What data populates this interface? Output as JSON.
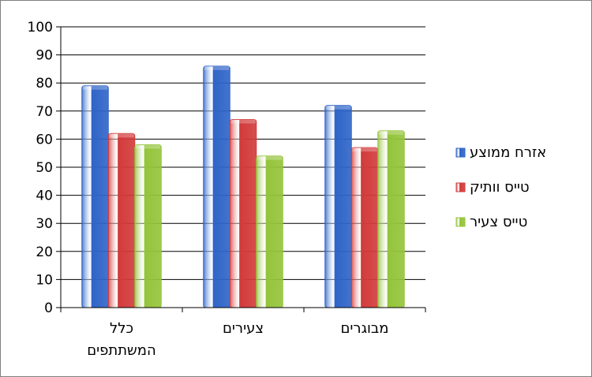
{
  "chart_data": {
    "type": "bar",
    "categories": [
      "כלל המשתתפים",
      "צעירים",
      "מבוגרים"
    ],
    "category_lines": [
      [
        "כלל",
        "המשתתפים"
      ],
      [
        "צעירים"
      ],
      [
        "מבוגרים"
      ]
    ],
    "series": [
      {
        "name": "אזרח ממוצע",
        "values": [
          79,
          86,
          72
        ],
        "color": "#2e64c8"
      },
      {
        "name": "טייס וותיק",
        "values": [
          62,
          67,
          57
        ],
        "color": "#d23a3a"
      },
      {
        "name": "טייס צעיר",
        "values": [
          58,
          54,
          63
        ],
        "color": "#94c43a"
      }
    ],
    "ylim": [
      0,
      100
    ],
    "yticks": [
      0,
      10,
      20,
      30,
      40,
      50,
      60,
      70,
      80,
      90,
      100
    ],
    "grid": true,
    "legend": "right",
    "title": "",
    "xlabel": "",
    "ylabel": ""
  }
}
